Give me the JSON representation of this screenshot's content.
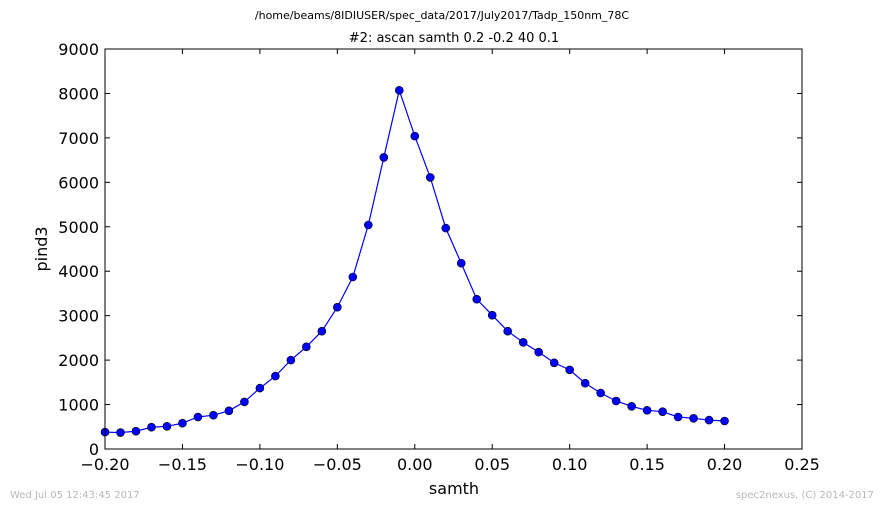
{
  "chart_data": {
    "type": "line",
    "suptitle": "/home/beams/8IDIUSER/spec_data/2017/July2017/Tadp_150nm_78C",
    "title": "#2: ascan  samth 0.2 -0.2  40 0.1",
    "xlabel": "samth",
    "ylabel": "pind3",
    "xlim": [
      -0.2,
      0.25
    ],
    "ylim": [
      0,
      9000
    ],
    "xticks": [
      "−0.20",
      "−0.15",
      "−0.10",
      "−0.05",
      "0.00",
      "0.05",
      "0.10",
      "0.15",
      "0.20",
      "0.25"
    ],
    "xtick_values": [
      -0.2,
      -0.15,
      -0.1,
      -0.05,
      0,
      0.05,
      0.1,
      0.15,
      0.2,
      0.25
    ],
    "yticks": [
      "0",
      "1000",
      "2000",
      "3000",
      "4000",
      "5000",
      "6000",
      "7000",
      "8000",
      "9000"
    ],
    "ytick_values": [
      0,
      1000,
      2000,
      3000,
      4000,
      5000,
      6000,
      7000,
      8000,
      9000
    ],
    "grid": false,
    "series": [
      {
        "color": "#0000ff",
        "marker": "circle",
        "x": [
          -0.2,
          -0.19,
          -0.18,
          -0.17,
          -0.16,
          -0.15,
          -0.14,
          -0.13,
          -0.12,
          -0.11,
          -0.1,
          -0.09,
          -0.08,
          -0.07,
          -0.06,
          -0.05,
          -0.04,
          -0.03,
          -0.02,
          -0.01,
          0.0,
          0.01,
          0.02,
          0.03,
          0.04,
          0.05,
          0.06,
          0.07,
          0.08,
          0.09,
          0.1,
          0.11,
          0.12,
          0.13,
          0.14,
          0.15,
          0.16,
          0.17,
          0.18,
          0.19,
          0.2
        ],
        "y": [
          380,
          370,
          400,
          490,
          510,
          580,
          720,
          760,
          860,
          1060,
          1370,
          1640,
          2000,
          2300,
          2650,
          3190,
          3870,
          5040,
          6560,
          8070,
          7040,
          6110,
          4970,
          4180,
          3370,
          3010,
          2650,
          2400,
          2180,
          1940,
          1780,
          1480,
          1260,
          1080,
          960,
          870,
          840,
          720,
          690,
          650,
          630
        ]
      }
    ]
  },
  "footer": {
    "timestamp": "Wed Jul 05 12:43:45 2017",
    "credit": "spec2nexus, (C) 2014-2017"
  },
  "colors": {
    "line": "#0000ff",
    "marker_fill": "#0000ff",
    "marker_edge": "#000000"
  }
}
